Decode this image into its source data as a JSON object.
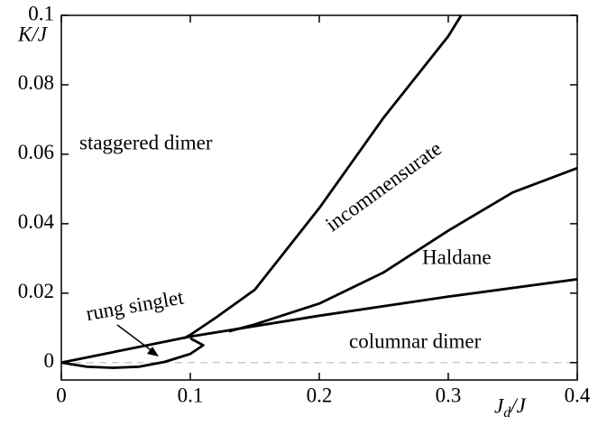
{
  "chart_data": {
    "type": "line",
    "xlabel": "J_d/J",
    "ylabel": "K/J",
    "xlim": [
      0,
      0.4
    ],
    "ylim": [
      -0.005,
      0.1
    ],
    "xticks": [
      0,
      0.1,
      0.2,
      0.3,
      0.4
    ],
    "yticks": [
      0,
      0.02,
      0.04,
      0.06,
      0.08,
      0.1
    ],
    "series": [
      {
        "color": "#000000",
        "x": [
          0.095,
          0.1,
          0.12,
          0.15,
          0.2,
          0.25,
          0.3,
          0.31
        ],
        "values": [
          0.007,
          0.008,
          0.013,
          0.021,
          0.0445,
          0.0706,
          0.094,
          0.1
        ]
      },
      {
        "color": "#000000",
        "x": [
          0.13,
          0.15,
          0.2,
          0.25,
          0.3,
          0.35,
          0.4
        ],
        "values": [
          0.009,
          0.011,
          0.017,
          0.026,
          0.038,
          0.049,
          0.056
        ]
      },
      {
        "color": "#000000",
        "x": [
          0,
          0.1,
          0.2,
          0.3,
          0.4
        ],
        "values": [
          0,
          0.0075,
          0.0135,
          0.019,
          0.024
        ]
      },
      {
        "color": "#000000",
        "x": [
          0,
          0.02,
          0.04,
          0.06,
          0.08,
          0.1,
          0.11,
          0.1
        ],
        "values": [
          0,
          -0.0012,
          -0.0015,
          -0.0012,
          0.0002,
          0.0025,
          0.005,
          0.007
        ]
      }
    ],
    "annotations": [
      "staggered dimer",
      "incommensurate",
      "Haldane",
      "rung singlet",
      "columnar dimer"
    ],
    "zero_line_color": "#cccccc"
  }
}
